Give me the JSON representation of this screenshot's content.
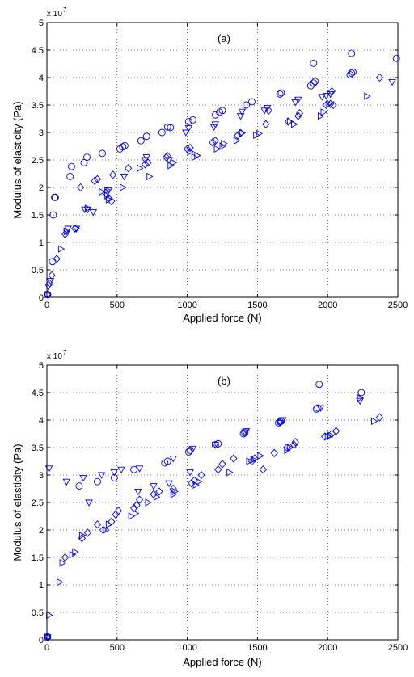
{
  "chart_data": [
    {
      "type": "scatter",
      "title": "(a)",
      "xlabel": "Applied force  (N)",
      "ylabel": "Modulus of elasticity  (Pa)",
      "y_multiplier": "x 10",
      "y_multiplier_exp": "7",
      "xlim": [
        0,
        2500
      ],
      "ylim": [
        0,
        5
      ],
      "xticks": [
        "0",
        "500",
        "1000",
        "1500",
        "2000",
        "2500"
      ],
      "yticks": [
        "0",
        "0.5",
        "1",
        "1.5",
        "2",
        "2.5",
        "3",
        "3.5",
        "4",
        "4.5",
        "5"
      ],
      "grid": true,
      "color": "#0000ff",
      "series": [
        {
          "marker": "circle",
          "points": [
            [
              5,
              0.05
            ],
            [
              40,
              0.65
            ],
            [
              45,
              1.5
            ],
            [
              55,
              1.82
            ],
            [
              60,
              1.82
            ],
            [
              165,
              2.2
            ],
            [
              175,
              2.38
            ],
            [
              265,
              2.45
            ],
            [
              285,
              2.55
            ],
            [
              395,
              2.62
            ],
            [
              520,
              2.7
            ],
            [
              540,
              2.74
            ],
            [
              555,
              2.76
            ],
            [
              670,
              2.85
            ],
            [
              710,
              2.93
            ],
            [
              820,
              3.0
            ],
            [
              860,
              3.1
            ],
            [
              880,
              3.09
            ],
            [
              1010,
              3.2
            ],
            [
              1040,
              3.23
            ],
            [
              1200,
              3.32
            ],
            [
              1230,
              3.37
            ],
            [
              1250,
              3.4
            ],
            [
              1420,
              3.5
            ],
            [
              1460,
              3.56
            ],
            [
              1660,
              3.7
            ],
            [
              1670,
              3.72
            ],
            [
              1880,
              3.85
            ],
            [
              1900,
              3.9
            ],
            [
              1900,
              4.26
            ],
            [
              1910,
              3.93
            ],
            [
              2160,
              4.05
            ],
            [
              2170,
              4.08
            ],
            [
              2180,
              4.1
            ],
            [
              2170,
              4.44
            ],
            [
              2490,
              4.35
            ]
          ]
        },
        {
          "marker": "diamond",
          "points": [
            [
              5,
              0.05
            ],
            [
              20,
              0.25
            ],
            [
              35,
              0.4
            ],
            [
              70,
              0.7
            ],
            [
              130,
              1.15
            ],
            [
              200,
              1.25
            ],
            [
              240,
              2.0
            ],
            [
              340,
              2.12
            ],
            [
              360,
              2.15
            ],
            [
              420,
              1.9
            ],
            [
              440,
              1.8
            ],
            [
              460,
              1.75
            ],
            [
              470,
              2.23
            ],
            [
              580,
              2.35
            ],
            [
              700,
              2.42
            ],
            [
              720,
              2.45
            ],
            [
              850,
              2.55
            ],
            [
              860,
              2.57
            ],
            [
              1000,
              2.7
            ],
            [
              1020,
              2.72
            ],
            [
              1180,
              2.82
            ],
            [
              1200,
              2.85
            ],
            [
              1360,
              2.95
            ],
            [
              1380,
              2.99
            ],
            [
              1560,
              3.15
            ],
            [
              1580,
              3.4
            ],
            [
              1720,
              3.2
            ],
            [
              1790,
              3.3
            ],
            [
              1800,
              3.35
            ],
            [
              1990,
              3.5
            ],
            [
              2020,
              3.52
            ],
            [
              2040,
              3.5
            ],
            [
              2030,
              3.75
            ],
            [
              2370,
              4.0
            ]
          ]
        },
        {
          "marker": "triangle-down",
          "points": [
            [
              10,
              0.2
            ],
            [
              25,
              0.3
            ],
            [
              140,
              1.2
            ],
            [
              150,
              1.25
            ],
            [
              210,
              1.25
            ],
            [
              270,
              1.6
            ],
            [
              290,
              1.6
            ],
            [
              330,
              1.55
            ],
            [
              440,
              1.95
            ],
            [
              550,
              2.2
            ],
            [
              700,
              2.5
            ],
            [
              710,
              2.55
            ],
            [
              870,
              2.5
            ],
            [
              990,
              3.0
            ],
            [
              1010,
              3.08
            ],
            [
              1190,
              3.1
            ],
            [
              1200,
              3.15
            ],
            [
              1380,
              3.3
            ],
            [
              1390,
              3.38
            ],
            [
              1550,
              3.4
            ],
            [
              1570,
              3.45
            ],
            [
              1770,
              3.55
            ],
            [
              1790,
              3.6
            ],
            [
              1960,
              3.65
            ],
            [
              1990,
              3.67
            ],
            [
              2020,
              3.7
            ],
            [
              2460,
              3.92
            ]
          ]
        },
        {
          "marker": "triangle-right",
          "points": [
            [
              5,
              0.05
            ],
            [
              100,
              0.88
            ],
            [
              140,
              1.2
            ],
            [
              210,
              1.25
            ],
            [
              290,
              1.62
            ],
            [
              390,
              1.92
            ],
            [
              430,
              1.95
            ],
            [
              430,
              1.85
            ],
            [
              440,
              1.78
            ],
            [
              540,
              2.0
            ],
            [
              660,
              2.35
            ],
            [
              730,
              2.2
            ],
            [
              880,
              2.4
            ],
            [
              900,
              2.45
            ],
            [
              1020,
              2.65
            ],
            [
              1050,
              2.55
            ],
            [
              1070,
              2.58
            ],
            [
              1210,
              2.7
            ],
            [
              1250,
              2.75
            ],
            [
              1260,
              2.8
            ],
            [
              1350,
              2.85
            ],
            [
              1390,
              2.99
            ],
            [
              1490,
              2.95
            ],
            [
              1510,
              2.98
            ],
            [
              1730,
              3.2
            ],
            [
              1760,
              3.15
            ],
            [
              1950,
              3.3
            ],
            [
              1970,
              3.37
            ],
            [
              2010,
              3.52
            ],
            [
              2280,
              3.66
            ]
          ]
        }
      ]
    },
    {
      "type": "scatter",
      "title": "(b)",
      "xlabel": "Applied force  (N)",
      "ylabel": "Modulus of elasticity  (Pa)",
      "y_multiplier": "x 10",
      "y_multiplier_exp": "7",
      "xlim": [
        0,
        2500
      ],
      "ylim": [
        0,
        5
      ],
      "xticks": [
        "0",
        "500",
        "1000",
        "1500",
        "2000",
        "2500"
      ],
      "yticks": [
        "0",
        "0.5",
        "1",
        "1.5",
        "2",
        "2.5",
        "3",
        "3.5",
        "4",
        "4.5",
        "5"
      ],
      "grid": true,
      "color": "#0000ff",
      "series": [
        {
          "marker": "circle",
          "points": [
            [
              5,
              0.05
            ],
            [
              230,
              2.8
            ],
            [
              360,
              2.88
            ],
            [
              480,
              2.95
            ],
            [
              620,
              3.1
            ],
            [
              840,
              3.22
            ],
            [
              860,
              3.25
            ],
            [
              1010,
              3.42
            ],
            [
              1020,
              3.45
            ],
            [
              1200,
              3.55
            ],
            [
              1220,
              3.57
            ],
            [
              1400,
              3.75
            ],
            [
              1410,
              3.77
            ],
            [
              1650,
              3.95
            ],
            [
              1660,
              3.97
            ],
            [
              1670,
              3.98
            ],
            [
              1920,
              4.2
            ],
            [
              1930,
              4.22
            ],
            [
              1940,
              4.65
            ],
            [
              2240,
              4.5
            ]
          ]
        },
        {
          "marker": "diamond",
          "points": [
            [
              5,
              0.05
            ],
            [
              130,
              1.5
            ],
            [
              250,
              1.85
            ],
            [
              290,
              1.95
            ],
            [
              360,
              2.1
            ],
            [
              400,
              2.0
            ],
            [
              460,
              2.15
            ],
            [
              490,
              2.28
            ],
            [
              510,
              2.35
            ],
            [
              620,
              2.4
            ],
            [
              640,
              2.45
            ],
            [
              660,
              2.55
            ],
            [
              760,
              2.65
            ],
            [
              800,
              2.7
            ],
            [
              900,
              2.75
            ],
            [
              1030,
              2.85
            ],
            [
              1050,
              2.9
            ],
            [
              1100,
              3.0
            ],
            [
              1220,
              3.1
            ],
            [
              1250,
              3.2
            ],
            [
              1330,
              3.3
            ],
            [
              1460,
              3.25
            ],
            [
              1480,
              3.3
            ],
            [
              1540,
              3.1
            ],
            [
              1620,
              3.4
            ],
            [
              1710,
              3.5
            ],
            [
              1760,
              3.55
            ],
            [
              1770,
              3.6
            ],
            [
              1980,
              3.7
            ],
            [
              2030,
              3.75
            ],
            [
              2060,
              3.8
            ],
            [
              2370,
              4.05
            ]
          ]
        },
        {
          "marker": "triangle-down",
          "points": [
            [
              5,
              0.05
            ],
            [
              15,
              3.12
            ],
            [
              140,
              2.88
            ],
            [
              260,
              2.95
            ],
            [
              300,
              2.5
            ],
            [
              390,
              3.0
            ],
            [
              480,
              3.05
            ],
            [
              530,
              3.1
            ],
            [
              650,
              2.7
            ],
            [
              660,
              3.12
            ],
            [
              760,
              2.8
            ],
            [
              870,
              2.85
            ],
            [
              900,
              3.3
            ],
            [
              1020,
              3.05
            ],
            [
              1040,
              3.48
            ],
            [
              1200,
              3.55
            ],
            [
              1410,
              3.78
            ],
            [
              1420,
              3.8
            ],
            [
              1660,
              3.95
            ],
            [
              1680,
              4.0
            ],
            [
              1950,
              4.22
            ],
            [
              2230,
              4.35
            ]
          ]
        },
        {
          "marker": "triangle-right",
          "points": [
            [
              5,
              0.05
            ],
            [
              15,
              0.45
            ],
            [
              90,
              1.05
            ],
            [
              110,
              1.4
            ],
            [
              180,
              1.55
            ],
            [
              200,
              1.6
            ],
            [
              250,
              1.9
            ],
            [
              420,
              2.0
            ],
            [
              440,
              2.1
            ],
            [
              600,
              2.25
            ],
            [
              630,
              2.3
            ],
            [
              720,
              2.5
            ],
            [
              780,
              2.6
            ],
            [
              900,
              2.65
            ],
            [
              910,
              2.7
            ],
            [
              1060,
              2.82
            ],
            [
              1080,
              2.88
            ],
            [
              1300,
              3.05
            ],
            [
              1440,
              3.25
            ],
            [
              1470,
              3.28
            ],
            [
              1520,
              3.35
            ],
            [
              1710,
              3.45
            ],
            [
              1730,
              3.5
            ],
            [
              2000,
              3.7
            ],
            [
              2020,
              3.72
            ],
            [
              2230,
              4.4
            ],
            [
              2330,
              3.98
            ]
          ]
        }
      ]
    }
  ]
}
